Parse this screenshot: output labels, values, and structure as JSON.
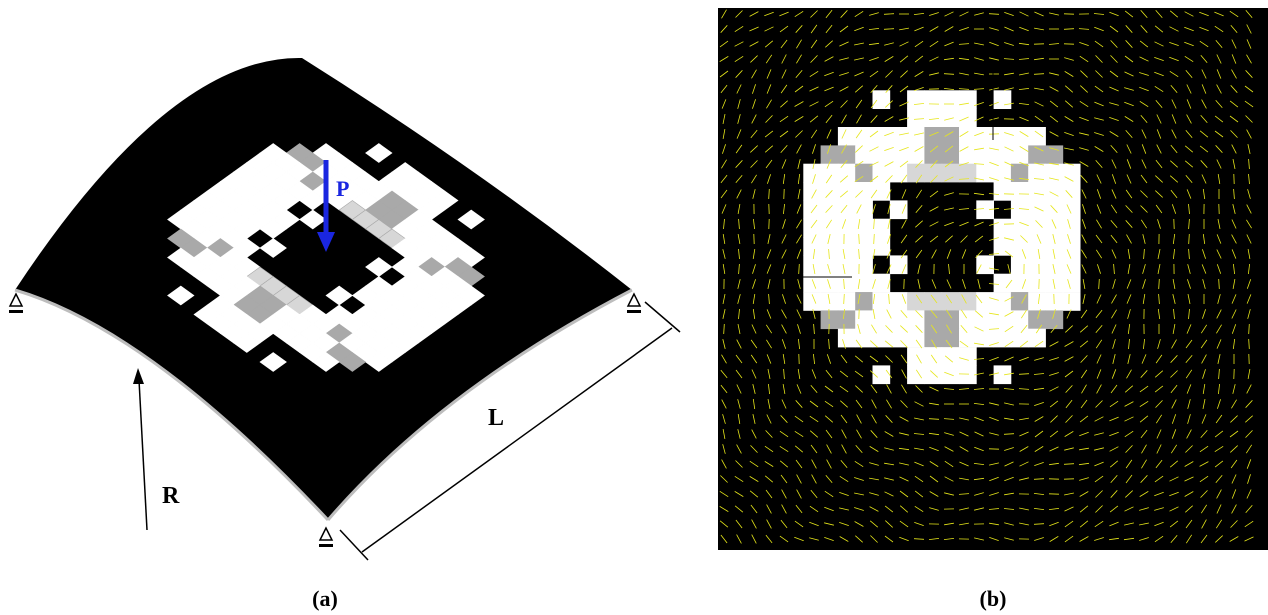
{
  "panel_a": {
    "caption": "(a)",
    "labels": {
      "radius": "R",
      "span": "L",
      "load": "P"
    }
  },
  "panel_b": {
    "caption": "(b)"
  },
  "colors": {
    "shell": "#000000",
    "void": "#ffffff",
    "intermediate_light": "#d7d7d7",
    "intermediate_dark": "#a9a9a9",
    "load_arrow": "#1a26e0",
    "vector_lines": "#e6e61a",
    "annotation": "#000000"
  },
  "icons": {
    "support": "pin-support-icon"
  }
}
